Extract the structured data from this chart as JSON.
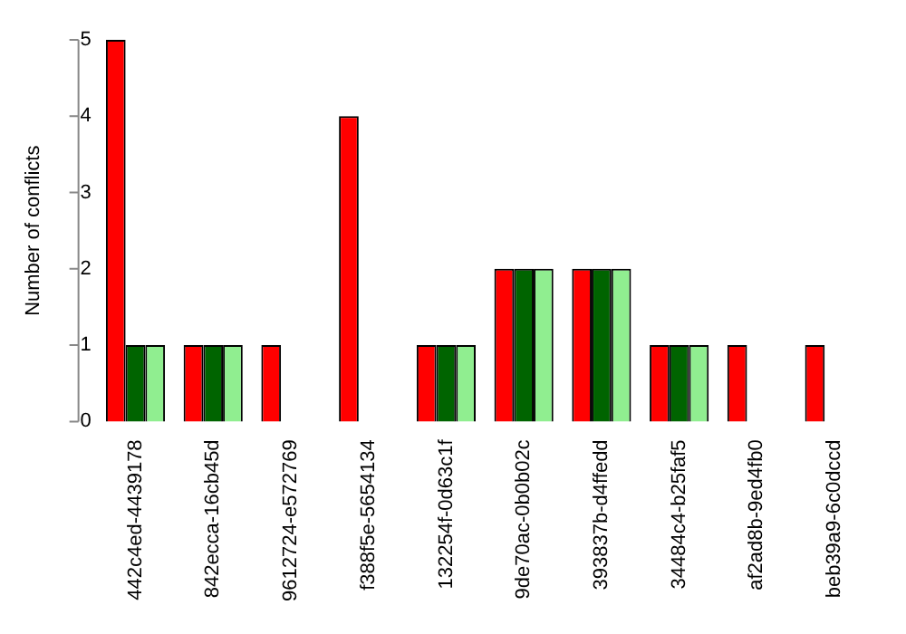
{
  "chart_data": {
    "type": "bar",
    "ylabel": "Number of conflicts",
    "categories": [
      "442c4ed-4439178",
      "842ecca-16cb45d",
      "9612724-e572769",
      "f388f5e-5654134",
      "132254f-0d63c1f",
      "9de70ac-0b0b02c",
      "393837b-d4ffedd",
      "34484c4-b25faf5",
      "af2ad8b-9ed4fb0",
      "beb39a9-6c0dccd"
    ],
    "series": [
      {
        "color": "#ff0000",
        "values": [
          5,
          1,
          1,
          4,
          1,
          2,
          2,
          1,
          1,
          1
        ]
      },
      {
        "color": "#006400",
        "values": [
          1,
          1,
          0,
          0,
          1,
          2,
          2,
          1,
          0,
          0
        ]
      },
      {
        "color": "#90ee90",
        "values": [
          1,
          1,
          0,
          0,
          1,
          2,
          2,
          1,
          0,
          0
        ]
      }
    ],
    "ylim": [
      0,
      5
    ],
    "yticks": [
      0,
      1,
      2,
      3,
      4,
      5
    ],
    "grid": false,
    "legend": false
  }
}
